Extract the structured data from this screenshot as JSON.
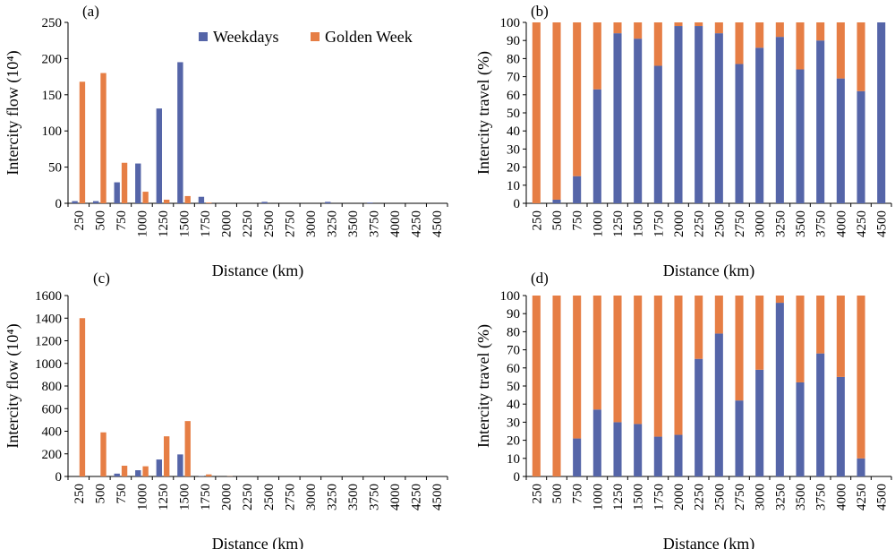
{
  "colors": {
    "weekdays": "#5565a8",
    "golden": "#e67e45",
    "axis": "#000000"
  },
  "chart_data": [
    {
      "panel": "a",
      "type": "bar",
      "label": "(a)",
      "ylabel": "Intercity flow (10⁴)",
      "xlabel": "Distance (km)",
      "ylim": [
        0,
        250
      ],
      "yticks": [
        0,
        50,
        100,
        150,
        200,
        250
      ],
      "legend_position": "top",
      "categories": [
        "250",
        "500",
        "750",
        "1000",
        "1250",
        "1500",
        "1750",
        "2000",
        "2250",
        "2500",
        "2750",
        "3000",
        "3250",
        "3500",
        "3750",
        "4000",
        "4250",
        "4500"
      ],
      "series": [
        {
          "name": "Weekdays",
          "color": "#5565a8",
          "values": [
            3,
            3,
            29,
            55,
            131,
            195,
            9,
            0,
            0,
            2,
            0,
            0,
            2,
            0,
            1,
            0,
            0,
            0
          ]
        },
        {
          "name": "Golden Week",
          "color": "#e67e45",
          "values": [
            168,
            180,
            56,
            16,
            5,
            10,
            1,
            0,
            0,
            0,
            0,
            0,
            0,
            0,
            0,
            0,
            0,
            0
          ]
        }
      ]
    },
    {
      "panel": "b",
      "type": "bar",
      "stacked": true,
      "label": "(b)",
      "ylabel": "Intercity travel (%)",
      "xlabel": "Distance (km)",
      "ylim": [
        0,
        100
      ],
      "yticks": [
        0,
        10,
        20,
        30,
        40,
        50,
        60,
        70,
        80,
        90,
        100
      ],
      "categories": [
        "250",
        "500",
        "750",
        "1000",
        "1250",
        "1500",
        "1750",
        "2000",
        "2250",
        "2500",
        "2750",
        "3000",
        "3250",
        "3500",
        "3750",
        "4000",
        "4250",
        "4500"
      ],
      "series": [
        {
          "name": "Weekdays",
          "color": "#5565a8",
          "values": [
            0,
            2,
            15,
            63,
            94,
            91,
            76,
            98,
            98,
            94,
            77,
            86,
            92,
            74,
            90,
            69,
            62,
            100
          ]
        },
        {
          "name": "Golden Week",
          "color": "#e67e45",
          "values": [
            100,
            98,
            85,
            37,
            6,
            9,
            24,
            2,
            2,
            6,
            23,
            14,
            8,
            26,
            10,
            31,
            38,
            0
          ]
        }
      ]
    },
    {
      "panel": "c",
      "type": "bar",
      "label": "(c)",
      "ylabel": "Intercity flow (10⁴)",
      "xlabel": "Distance (km)",
      "ylim": [
        0,
        1600
      ],
      "yticks": [
        0,
        200,
        400,
        600,
        800,
        1000,
        1200,
        1400,
        1600
      ],
      "categories": [
        "250",
        "500",
        "750",
        "1000",
        "1250",
        "1500",
        "1750",
        "2000",
        "2250",
        "2500",
        "2750",
        "3000",
        "3250",
        "3500",
        "3750",
        "4000",
        "4250",
        "4500"
      ],
      "series": [
        {
          "name": "Weekdays",
          "color": "#5565a8",
          "values": [
            0,
            0,
            25,
            55,
            150,
            195,
            3,
            0,
            0,
            0,
            0,
            0,
            0,
            0,
            0,
            0,
            0,
            0
          ]
        },
        {
          "name": "Golden Week",
          "color": "#e67e45",
          "values": [
            1400,
            390,
            95,
            90,
            355,
            490,
            18,
            2,
            0,
            0,
            0,
            0,
            0,
            0,
            0,
            0,
            0,
            0
          ]
        }
      ]
    },
    {
      "panel": "d",
      "type": "bar",
      "stacked": true,
      "label": "(d)",
      "ylabel": "Intercity travel (%)",
      "xlabel": "Distance (km)",
      "ylim": [
        0,
        100
      ],
      "yticks": [
        0,
        10,
        20,
        30,
        40,
        50,
        60,
        70,
        80,
        90,
        100
      ],
      "categories": [
        "250",
        "500",
        "750",
        "1000",
        "1250",
        "1500",
        "1750",
        "2000",
        "2250",
        "2500",
        "2750",
        "3000",
        "3250",
        "3500",
        "3750",
        "4000",
        "4250",
        "4500"
      ],
      "series": [
        {
          "name": "Weekdays",
          "color": "#5565a8",
          "values": [
            0,
            0,
            21,
            37,
            30,
            29,
            22,
            23,
            65,
            79,
            42,
            59,
            96,
            52,
            68,
            55,
            10,
            0
          ]
        },
        {
          "name": "Golden Week",
          "color": "#e67e45",
          "values": [
            100,
            100,
            79,
            63,
            70,
            71,
            78,
            77,
            35,
            21,
            58,
            41,
            4,
            48,
            32,
            45,
            90,
            0
          ]
        }
      ]
    }
  ]
}
